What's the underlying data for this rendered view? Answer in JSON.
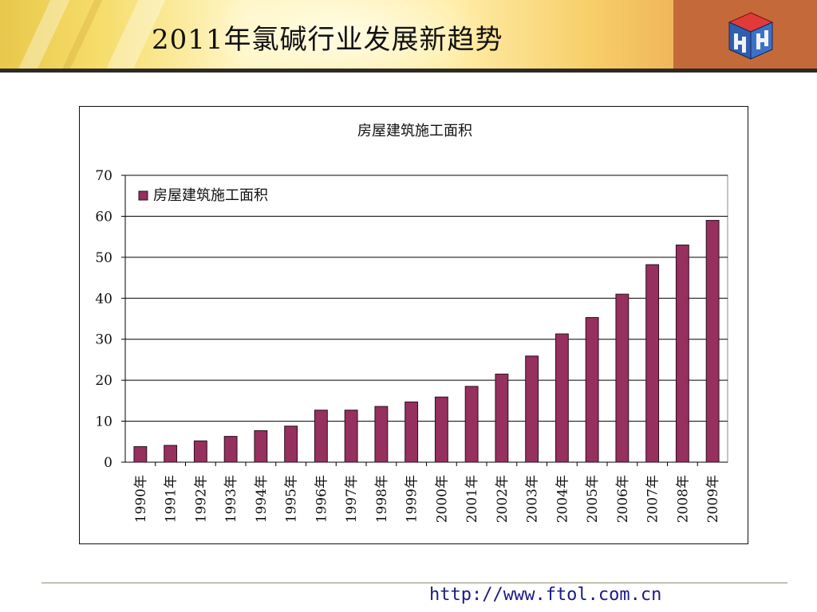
{
  "slide": {
    "title": "2011年氯碱行业发展新趋势",
    "footer_url": "http://www.ftol.com.cn",
    "logo_icon": "hh-cube-logo-icon"
  },
  "colors": {
    "bar_fill": "#96305f",
    "bar_stroke": "#2b0f1c",
    "gridline": "#000000",
    "header_accent": "#c46a3a"
  },
  "chart_data": {
    "type": "bar",
    "title": "房屋建筑施工面积",
    "categories": [
      "1990年",
      "1991年",
      "1992年",
      "1993年",
      "1994年",
      "1995年",
      "1996年",
      "1997年",
      "1998年",
      "1999年",
      "2000年",
      "2001年",
      "2002年",
      "2003年",
      "2004年",
      "2005年",
      "2006年",
      "2007年",
      "2008年",
      "2009年"
    ],
    "series": [
      {
        "name": "房屋建筑施工面积",
        "values": [
          3.8,
          4.1,
          5.2,
          6.3,
          7.7,
          8.8,
          12.7,
          12.7,
          13.6,
          14.7,
          15.9,
          18.5,
          21.5,
          25.9,
          31.3,
          35.3,
          41.0,
          48.2,
          53.0,
          59.0
        ]
      }
    ],
    "ylim": [
      0,
      70
    ],
    "yticks": [
      0,
      10,
      20,
      30,
      40,
      50,
      60,
      70
    ],
    "xlabel": "",
    "ylabel": "",
    "grid": "horizontal",
    "legend_position": "top-left"
  }
}
